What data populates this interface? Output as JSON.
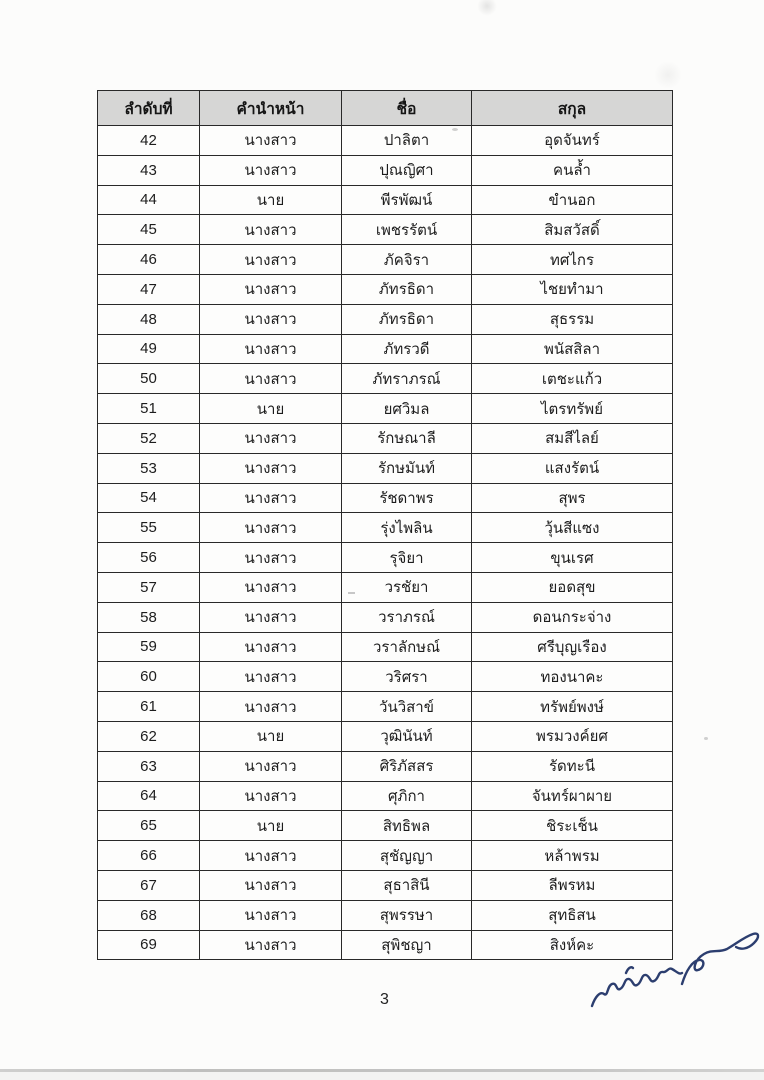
{
  "document": {
    "page_number": "3"
  },
  "table": {
    "headers": {
      "index": "ลำดับที่",
      "prefix": "คำนำหน้า",
      "first_name": "ชื่อ",
      "last_name": "สกุล"
    },
    "rows": [
      {
        "no": "42",
        "prefix": "นางสาว",
        "first_name": "ปาลิตา",
        "last_name": "อุดจันทร์"
      },
      {
        "no": "43",
        "prefix": "นางสาว",
        "first_name": "ปุณญิศา",
        "last_name": "คนล้ำ"
      },
      {
        "no": "44",
        "prefix": "นาย",
        "first_name": "พีรพัฒน์",
        "last_name": "ขำนอก"
      },
      {
        "no": "45",
        "prefix": "นางสาว",
        "first_name": "เพชรรัตน์",
        "last_name": "สิมสวัสดิ์"
      },
      {
        "no": "46",
        "prefix": "นางสาว",
        "first_name": "ภัคจิรา",
        "last_name": "ทศไกร"
      },
      {
        "no": "47",
        "prefix": "นางสาว",
        "first_name": "ภัทรธิดา",
        "last_name": "ไชยทำมา"
      },
      {
        "no": "48",
        "prefix": "นางสาว",
        "first_name": "ภัทรธิดา",
        "last_name": "สุธรรม"
      },
      {
        "no": "49",
        "prefix": "นางสาว",
        "first_name": "ภัทรวดี",
        "last_name": "พนัสสิลา"
      },
      {
        "no": "50",
        "prefix": "นางสาว",
        "first_name": "ภัทราภรณ์",
        "last_name": "เตชะแก้ว"
      },
      {
        "no": "51",
        "prefix": "นาย",
        "first_name": "ยศวิมล",
        "last_name": "ไตรทรัพย์"
      },
      {
        "no": "52",
        "prefix": "นางสาว",
        "first_name": "รักษณาลี",
        "last_name": "สมสีไลย์"
      },
      {
        "no": "53",
        "prefix": "นางสาว",
        "first_name": "รักษมันท์",
        "last_name": "แสงรัตน์"
      },
      {
        "no": "54",
        "prefix": "นางสาว",
        "first_name": "รัชดาพร",
        "last_name": "สุพร"
      },
      {
        "no": "55",
        "prefix": "นางสาว",
        "first_name": "รุ่งไพลิน",
        "last_name": "วุ้นสีแซง"
      },
      {
        "no": "56",
        "prefix": "นางสาว",
        "first_name": "รุจิยา",
        "last_name": "ขุนเรศ"
      },
      {
        "no": "57",
        "prefix": "นางสาว",
        "first_name": "วรชัยา",
        "last_name": "ยอดสุข"
      },
      {
        "no": "58",
        "prefix": "นางสาว",
        "first_name": "วราภรณ์",
        "last_name": "ดอนกระจ่าง"
      },
      {
        "no": "59",
        "prefix": "นางสาว",
        "first_name": "วราลักษณ์",
        "last_name": "ศรีบุญเรือง"
      },
      {
        "no": "60",
        "prefix": "นางสาว",
        "first_name": "วริศรา",
        "last_name": "ทองนาคะ"
      },
      {
        "no": "61",
        "prefix": "นางสาว",
        "first_name": "วันวิสาข์",
        "last_name": "ทรัพย์พงษ์"
      },
      {
        "no": "62",
        "prefix": "นาย",
        "first_name": "วุฒินันท์",
        "last_name": "พรมวงค์ยศ"
      },
      {
        "no": "63",
        "prefix": "นางสาว",
        "first_name": "ศิริภัสสร",
        "last_name": "รัดทะนี"
      },
      {
        "no": "64",
        "prefix": "นางสาว",
        "first_name": "ศุภิกา",
        "last_name": "จันทร์ผาผาย"
      },
      {
        "no": "65",
        "prefix": "นาย",
        "first_name": "สิทธิพล",
        "last_name": "ชิระเช็น"
      },
      {
        "no": "66",
        "prefix": "นางสาว",
        "first_name": "สุชัญญา",
        "last_name": "หล้าพรม"
      },
      {
        "no": "67",
        "prefix": "นางสาว",
        "first_name": "สุธาสินี",
        "last_name": "ลีพรหม"
      },
      {
        "no": "68",
        "prefix": "นางสาว",
        "first_name": "สุพรรษา",
        "last_name": "สุทธิสน"
      },
      {
        "no": "69",
        "prefix": "นางสาว",
        "first_name": "สุพิชญา",
        "last_name": "สิงห์คะ"
      }
    ]
  },
  "signature": {
    "present": true,
    "position": "bottom-right"
  },
  "colors": {
    "paper": "#fcfcfb",
    "header_bg": "#d6d6d5",
    "table_border": "#292929",
    "text_ink": "#1d1d1d",
    "signature_ink": "#2c3e6f"
  }
}
